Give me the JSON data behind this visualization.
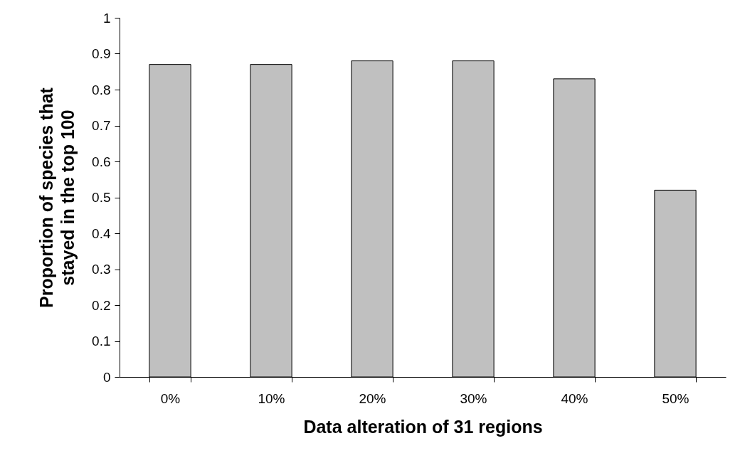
{
  "chart_data": {
    "type": "bar",
    "xlabel": "Data alteration of 31 regions",
    "ylabel": "Proportion of species that stayed in the top 100",
    "categories": [
      "0%",
      "10%",
      "20%",
      "30%",
      "40%",
      "50%"
    ],
    "values": [
      0.87,
      0.87,
      0.88,
      0.88,
      0.83,
      0.52
    ],
    "color": "#c0c0c0",
    "ylim": [
      0,
      1
    ],
    "yticks": [
      0,
      0.1,
      0.2,
      0.3,
      0.4,
      0.5,
      0.6,
      0.7,
      0.8,
      0.9,
      1
    ],
    "grid": false
  }
}
